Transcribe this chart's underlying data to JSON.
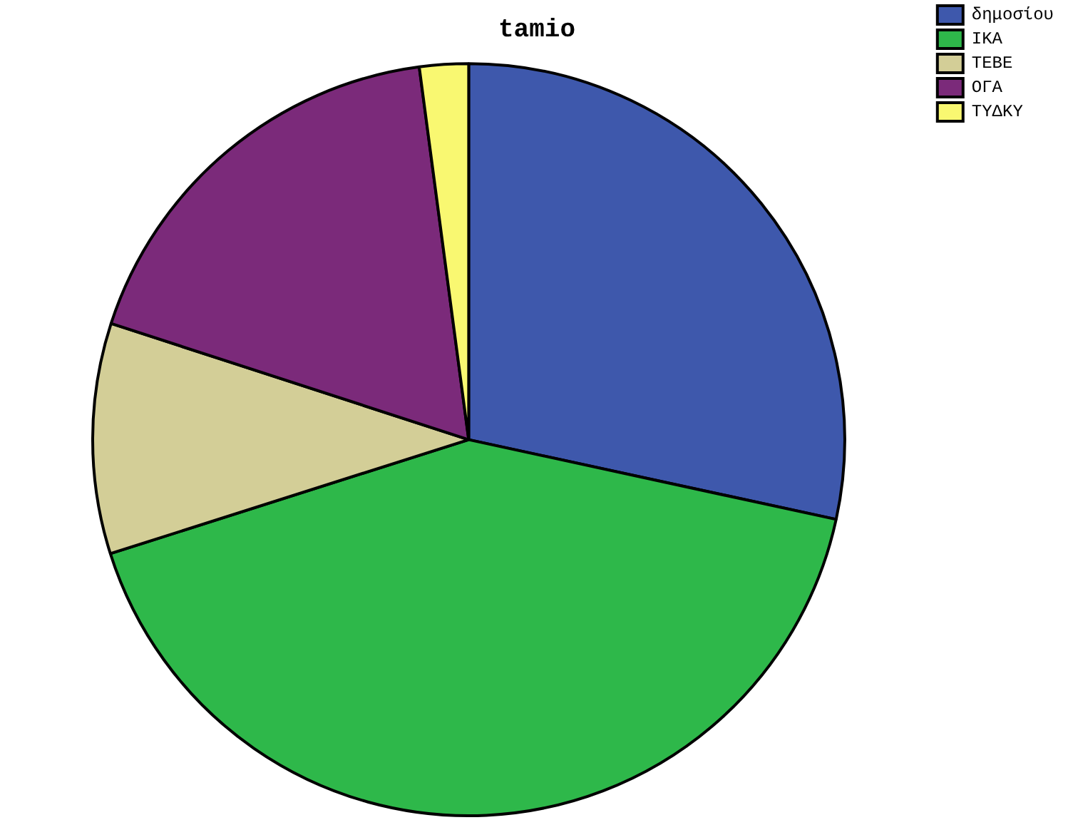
{
  "chart_data": {
    "type": "pie",
    "title": "tamio",
    "categories": [
      "δημοσίου",
      "ΙΚΑ",
      "ΤΕΒΕ",
      "ΟΓΑ",
      "ΤΥΔΚΥ"
    ],
    "values": [
      28.4,
      41.7,
      9.9,
      17.9,
      2.1
    ],
    "colors": [
      "#3e58ac",
      "#2eb84a",
      "#d3ce97",
      "#7b2a7a",
      "#f9f871"
    ],
    "legend": "top right"
  }
}
